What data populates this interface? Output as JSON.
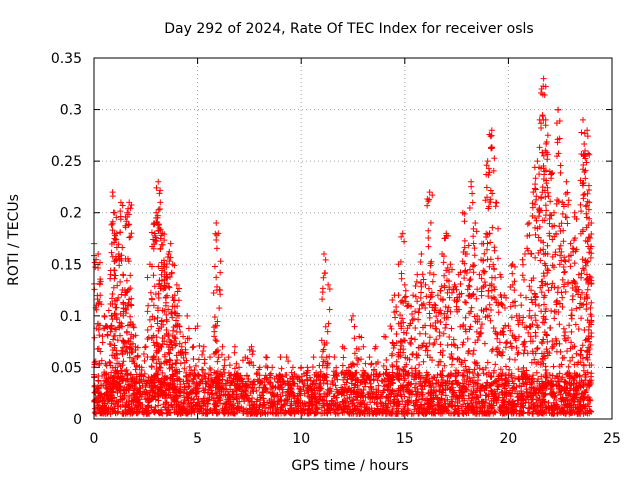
{
  "chart_data": {
    "type": "scatter",
    "title": "Day 292 of 2024, Rate Of TEC Index for receiver osls",
    "xlabel": "GPS time / hours",
    "ylabel": "ROTI / TECUs",
    "xlim": [
      0,
      25
    ],
    "ylim": [
      0,
      0.35
    ],
    "x_ticks": [
      "0",
      "5",
      "10",
      "15",
      "20",
      "25"
    ],
    "y_ticks": [
      "0",
      "0.05",
      "0.1",
      "0.15",
      "0.2",
      "0.25",
      "0.3",
      "0.35"
    ],
    "grid": true,
    "marker": "plus",
    "color": "#ff0000",
    "series": [
      {
        "x": [
          0.0,
          0.2,
          0.3,
          0.5,
          0.6,
          0.8,
          0.9,
          1.0,
          1.1,
          1.2,
          1.3,
          1.4,
          1.5,
          1.6,
          1.7,
          1.8,
          1.9,
          2.0,
          2.1,
          2.3,
          2.5,
          2.7,
          2.9,
          3.0,
          3.1,
          3.2,
          3.3,
          3.4,
          3.5,
          3.6,
          3.7,
          3.8,
          3.9,
          4.0,
          4.1,
          4.3,
          4.5,
          4.8,
          5.0,
          5.3,
          5.6,
          5.9,
          6.0,
          6.2,
          6.5,
          6.8,
          7.0,
          7.3,
          7.6,
          8.0,
          8.3,
          8.6,
          9.0,
          9.3,
          9.6,
          10.0,
          10.3,
          10.6,
          11.0,
          11.1,
          11.3,
          11.6,
          12.0,
          12.3,
          12.5,
          12.8,
          13.0,
          13.3,
          13.6,
          14.0,
          14.3,
          14.5,
          14.7,
          14.9,
          15.0,
          15.2,
          15.4,
          15.6,
          15.8,
          16.0,
          16.2,
          16.4,
          16.6,
          16.8,
          17.0,
          17.2,
          17.4,
          17.6,
          17.8,
          18.0,
          18.2,
          18.4,
          18.6,
          18.8,
          19.0,
          19.2,
          19.4,
          19.6,
          19.8,
          20.0,
          20.2,
          20.4,
          20.6,
          20.8,
          21.0,
          21.2,
          21.4,
          21.6,
          21.7,
          21.8,
          22.0,
          22.2,
          22.4,
          22.6,
          22.8,
          23.0,
          23.2,
          23.4,
          23.6,
          23.7,
          23.8,
          23.9,
          24.0
        ],
        "y": [
          0.17,
          0.16,
          0.12,
          0.1,
          0.09,
          0.14,
          0.22,
          0.2,
          0.18,
          0.16,
          0.21,
          0.14,
          0.12,
          0.2,
          0.21,
          0.11,
          0.09,
          0.07,
          0.06,
          0.05,
          0.07,
          0.15,
          0.19,
          0.2,
          0.23,
          0.21,
          0.18,
          0.15,
          0.14,
          0.16,
          0.17,
          0.15,
          0.12,
          0.13,
          0.1,
          0.08,
          0.1,
          0.07,
          0.09,
          0.07,
          0.06,
          0.19,
          0.18,
          0.07,
          0.06,
          0.07,
          0.05,
          0.06,
          0.07,
          0.05,
          0.06,
          0.05,
          0.06,
          0.06,
          0.05,
          0.05,
          0.05,
          0.06,
          0.06,
          0.16,
          0.13,
          0.06,
          0.07,
          0.05,
          0.1,
          0.08,
          0.07,
          0.06,
          0.07,
          0.08,
          0.09,
          0.12,
          0.15,
          0.18,
          0.13,
          0.11,
          0.12,
          0.14,
          0.16,
          0.13,
          0.22,
          0.14,
          0.12,
          0.16,
          0.18,
          0.15,
          0.13,
          0.14,
          0.2,
          0.16,
          0.23,
          0.19,
          0.14,
          0.17,
          0.25,
          0.28,
          0.21,
          0.14,
          0.12,
          0.09,
          0.15,
          0.1,
          0.12,
          0.16,
          0.19,
          0.22,
          0.25,
          0.32,
          0.33,
          0.29,
          0.24,
          0.2,
          0.3,
          0.21,
          0.23,
          0.17,
          0.2,
          0.14,
          0.29,
          0.26,
          0.28,
          0.21,
          0.19
        ]
      }
    ],
    "baseline": {
      "description_free": true,
      "x_start": 0,
      "x_end": 24,
      "y_min": 0.005,
      "y_max": 0.045
    }
  }
}
